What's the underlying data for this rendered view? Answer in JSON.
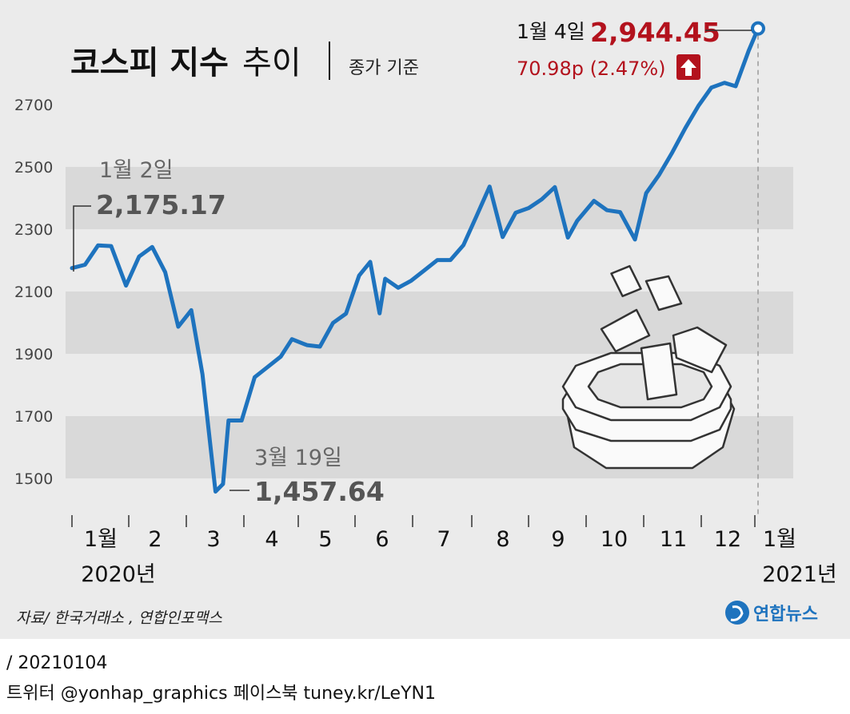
{
  "title": {
    "bold": "코스피 지수",
    "light": "추이",
    "subtitle": "종가 기준"
  },
  "annotations": {
    "start": {
      "date": "1월 2일",
      "value": "2,175.17"
    },
    "low": {
      "date": "3월 19일",
      "value": "1,457.64"
    },
    "last": {
      "date": "1월 4일",
      "value": "2,944.45",
      "change": "70.98p (2.47%)"
    }
  },
  "x_labels": {
    "months": [
      "1월",
      "2",
      "3",
      "4",
      "5",
      "6",
      "7",
      "8",
      "9",
      "10",
      "11",
      "12",
      "1월"
    ],
    "years": [
      "2020년",
      "2021년"
    ]
  },
  "source": "자료/ 한국거래소 , 연합인포맥스",
  "logo": "연합뉴스",
  "footer": {
    "date_line": "/ 20210104",
    "social_line": "트위터 @yonhap_graphics  페이스북 tuney.kr/LeYN1"
  },
  "colors": {
    "line": "#1e73be",
    "up": "#b3121d",
    "band": "#d9d9d9",
    "panel": "#ebebeb"
  },
  "chart_data": {
    "type": "line",
    "series": [
      {
        "x": [
          "2020-01-02",
          "2020-01-09",
          "2020-01-16",
          "2020-01-23",
          "2020-01-31",
          "2020-02-07",
          "2020-02-14",
          "2020-02-21",
          "2020-02-28",
          "2020-03-06",
          "2020-03-12",
          "2020-03-19",
          "2020-03-23",
          "2020-03-26",
          "2020-04-02",
          "2020-04-09",
          "2020-04-16",
          "2020-04-23",
          "2020-04-29",
          "2020-05-07",
          "2020-05-14",
          "2020-05-21",
          "2020-05-28",
          "2020-06-04",
          "2020-06-10",
          "2020-06-15",
          "2020-06-18",
          "2020-06-25",
          "2020-07-02",
          "2020-07-09",
          "2020-07-16",
          "2020-07-23",
          "2020-07-30",
          "2020-08-06",
          "2020-08-13",
          "2020-08-20",
          "2020-08-27",
          "2020-09-03",
          "2020-09-10",
          "2020-09-17",
          "2020-09-24",
          "2020-09-29",
          "2020-10-08",
          "2020-10-15",
          "2020-10-22",
          "2020-10-30",
          "2020-11-05",
          "2020-11-12",
          "2020-11-19",
          "2020-11-26",
          "2020-12-03",
          "2020-12-10",
          "2020-12-17",
          "2020-12-23",
          "2020-12-30",
          "2021-01-04"
        ],
        "values": [
          2175.17,
          2186,
          2248,
          2246,
          2119,
          2212,
          2243,
          2162,
          1987,
          2040,
          1834,
          1457.64,
          1482,
          1686,
          1686,
          1825,
          1858,
          1891,
          1947,
          1928,
          1923,
          1999,
          2029,
          2151,
          2195,
          2030,
          2141,
          2112,
          2135,
          2168,
          2201,
          2201,
          2249,
          2342,
          2437,
          2275,
          2353,
          2368,
          2396,
          2435,
          2273,
          2327,
          2391,
          2361,
          2355,
          2267,
          2416,
          2475,
          2547,
          2625,
          2696,
          2755,
          2770,
          2759,
          2873,
          2944.45
        ]
      }
    ],
    "ylim": [
      1400,
      2944.45
    ],
    "yticks": [
      1500,
      1700,
      1900,
      2100,
      2300,
      2500,
      2700
    ],
    "grid": true,
    "legend": "none"
  }
}
